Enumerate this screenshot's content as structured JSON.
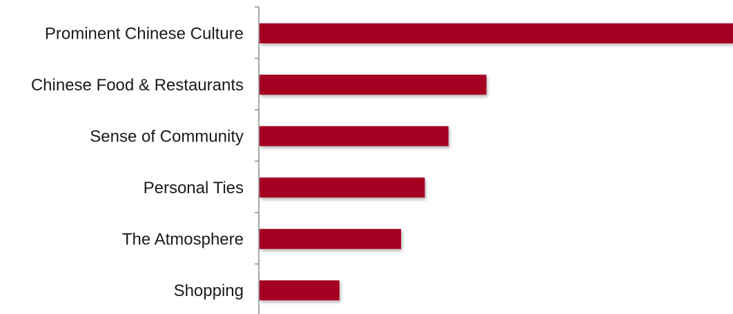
{
  "chart_data": {
    "type": "bar",
    "orientation": "horizontal",
    "categories": [
      "Prominent Chinese Culture",
      "Chinese Food & Restaurants",
      "Sense of Community",
      "Personal Ties",
      "The Atmosphere",
      "Shopping"
    ],
    "values": [
      100,
      48,
      40,
      35,
      30,
      17
    ],
    "title": "",
    "xlabel": "",
    "ylabel": "",
    "xlim": [
      0,
      100
    ],
    "grid": false,
    "legend": "none",
    "bar_color": "#a50021",
    "axis_color": "#888888",
    "label_color": "#1a1a1a"
  }
}
